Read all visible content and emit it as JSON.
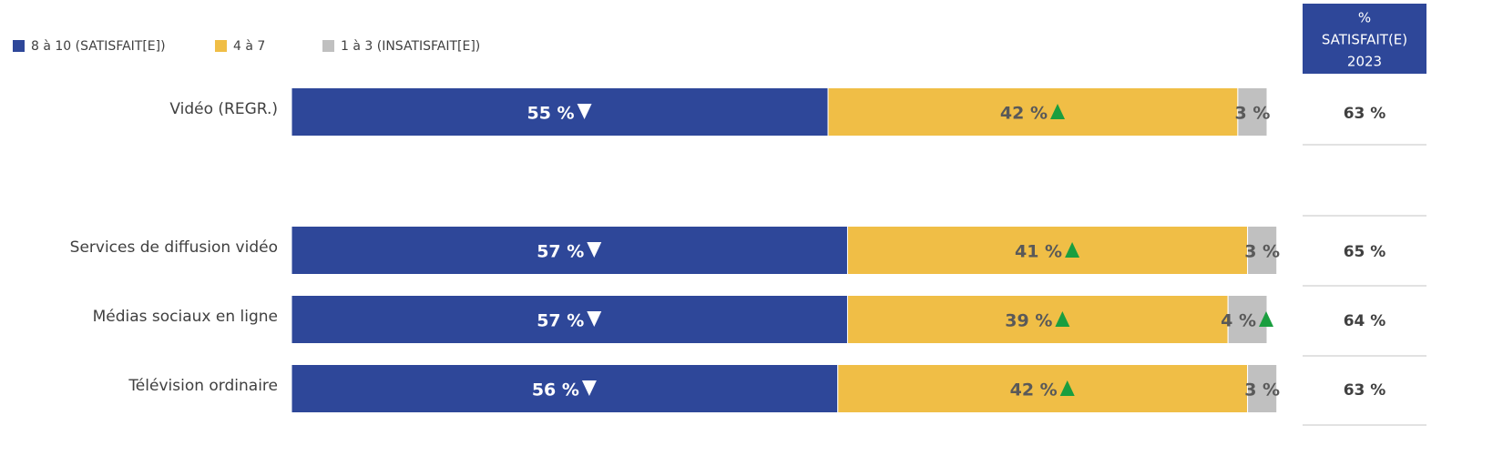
{
  "chart_data": {
    "type": "stacked_barh",
    "categories": [
      "Vidéo (REGR.)",
      "Services de diffusion vidéo",
      "Médias sociaux en ligne",
      "Télévision ordinaire"
    ],
    "xlim": [
      0,
      100
    ],
    "legend": "top-left",
    "series": [
      {
        "name": "8 à 10 (SATISFAIT[E])",
        "color": "#2e4799",
        "label_color": "#ffffff",
        "values": [
          55,
          57,
          57,
          56
        ],
        "value_labels": [
          "55 %",
          "57 %",
          "57 %",
          "56 %"
        ],
        "trends": [
          "down",
          "down",
          "down",
          "down"
        ]
      },
      {
        "name": "4 à 7",
        "color": "#f0be46",
        "label_color": "#595959",
        "values": [
          42,
          41,
          39,
          42
        ],
        "value_labels": [
          "42 %",
          "41 %",
          "39 %",
          "42 %"
        ],
        "trends": [
          "up",
          "up",
          "up",
          "up"
        ]
      },
      {
        "name": "1 à 3 (INSATISFAIT[E])",
        "color": "#c0c0c0",
        "label_color": "#595959",
        "values": [
          3,
          3,
          4,
          3
        ],
        "value_labels": [
          "3 %",
          "3 %",
          "4 %",
          "3 %"
        ],
        "trends": [
          null,
          null,
          "up",
          null
        ]
      }
    ],
    "trend_colors": {
      "up": "#1a9e3f",
      "down": "#ffffff"
    },
    "side_column": {
      "header": [
        "%",
        "SATISFAIT(E)",
        "2023"
      ],
      "color": "#2e4799",
      "values": [
        63,
        65,
        64,
        63
      ],
      "value_labels": [
        "63 %",
        "65 %",
        "64 %",
        "63 %"
      ]
    }
  }
}
